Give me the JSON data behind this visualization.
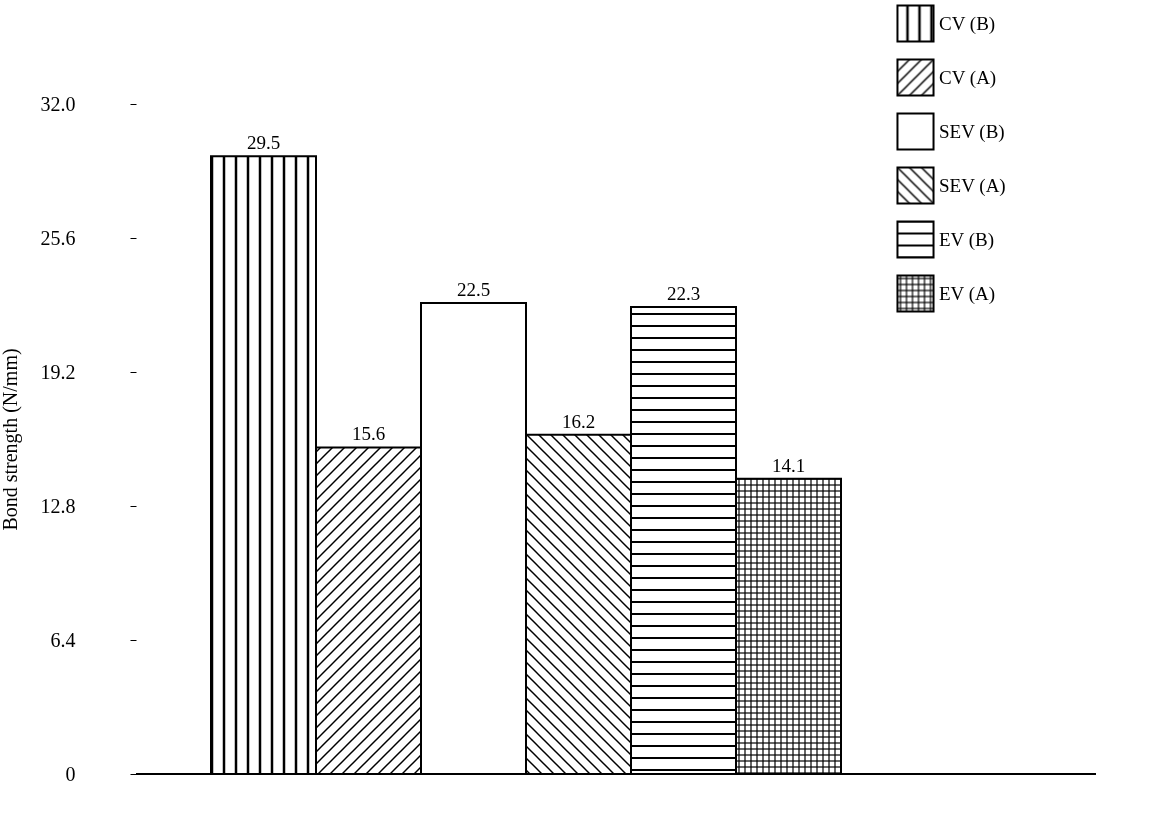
{
  "chart_data": {
    "type": "bar",
    "ylabel": "Bond strength (N/mm)",
    "categories": [
      null,
      null,
      null,
      null,
      null,
      null
    ],
    "series": [
      {
        "name": "CV (B)",
        "color": "#000000",
        "values": [
          29.5,
          null,
          null,
          null,
          null,
          null
        ]
      },
      {
        "name": "CV (A)",
        "color": "#000000",
        "values": [
          null,
          15.6,
          null,
          null,
          null,
          null
        ]
      },
      {
        "name": "SEV (B)",
        "color": "#000000",
        "values": [
          null,
          null,
          22.5,
          null,
          null,
          null
        ]
      },
      {
        "name": "SEV (A)",
        "color": "#000000",
        "values": [
          null,
          null,
          null,
          16.2,
          null,
          null
        ]
      },
      {
        "name": "EV (B)",
        "color": "#000000",
        "values": [
          null,
          null,
          null,
          null,
          22.3,
          null
        ]
      },
      {
        "name": "EV (A)",
        "color": "#000000",
        "values": [
          null,
          null,
          null,
          null,
          null,
          14.1
        ]
      }
    ],
    "ylim": [
      0,
      32
    ],
    "yticks": [
      0,
      {
        "value": 6.4,
        "label": "6.4"
      },
      {
        "value": 12.8,
        "label": "12.8"
      },
      {
        "value": 19.2,
        "label": "19.2"
      },
      {
        "value": 25.6,
        "label": "25.6"
      },
      {
        "value": 32,
        "label": "32.0"
      }
    ],
    "stacked": true,
    "data_labels": true,
    "grid": false,
    "legend": "top right"
  }
}
